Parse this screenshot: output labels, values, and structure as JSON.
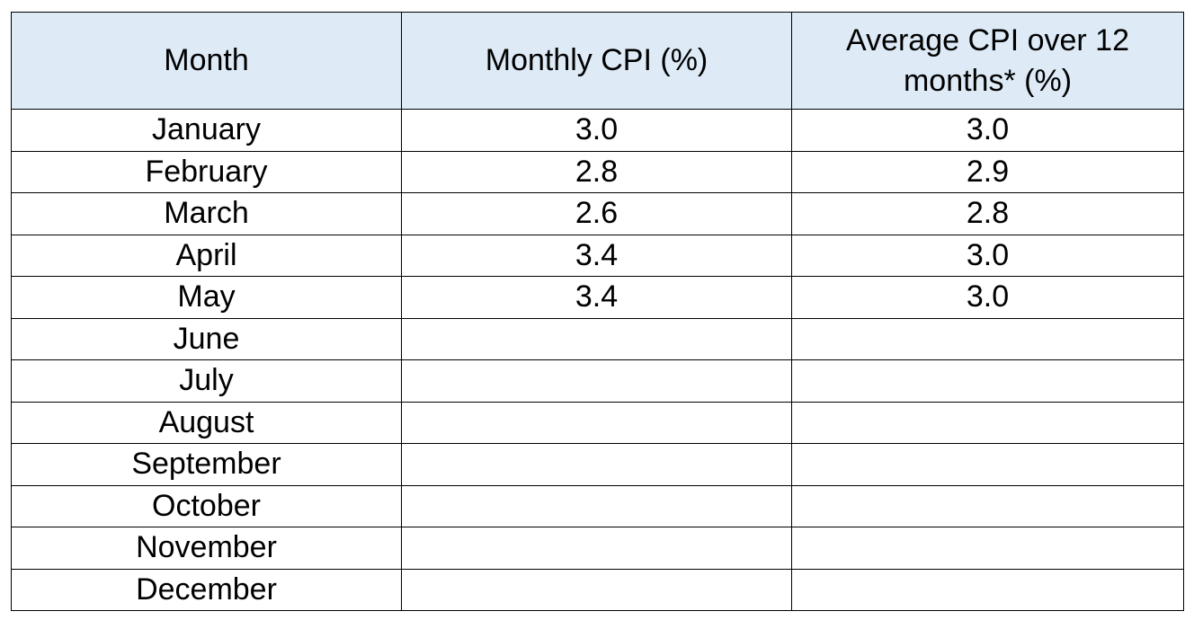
{
  "table": {
    "header_bg": "#deebf7",
    "border_color": "#000000",
    "headers": [
      "Month",
      "Monthly CPI (%)",
      "Average CPI over 12 months* (%)"
    ],
    "rows": [
      [
        "January",
        "3.0",
        "3.0"
      ],
      [
        "February",
        "2.8",
        "2.9"
      ],
      [
        "March",
        "2.6",
        "2.8"
      ],
      [
        "April",
        "3.4",
        "3.0"
      ],
      [
        "May",
        "3.4",
        "3.0"
      ],
      [
        "June",
        "",
        ""
      ],
      [
        "July",
        "",
        ""
      ],
      [
        "August",
        "",
        ""
      ],
      [
        "September",
        "",
        ""
      ],
      [
        "October",
        "",
        ""
      ],
      [
        "November",
        "",
        ""
      ],
      [
        "December",
        "",
        ""
      ]
    ]
  }
}
